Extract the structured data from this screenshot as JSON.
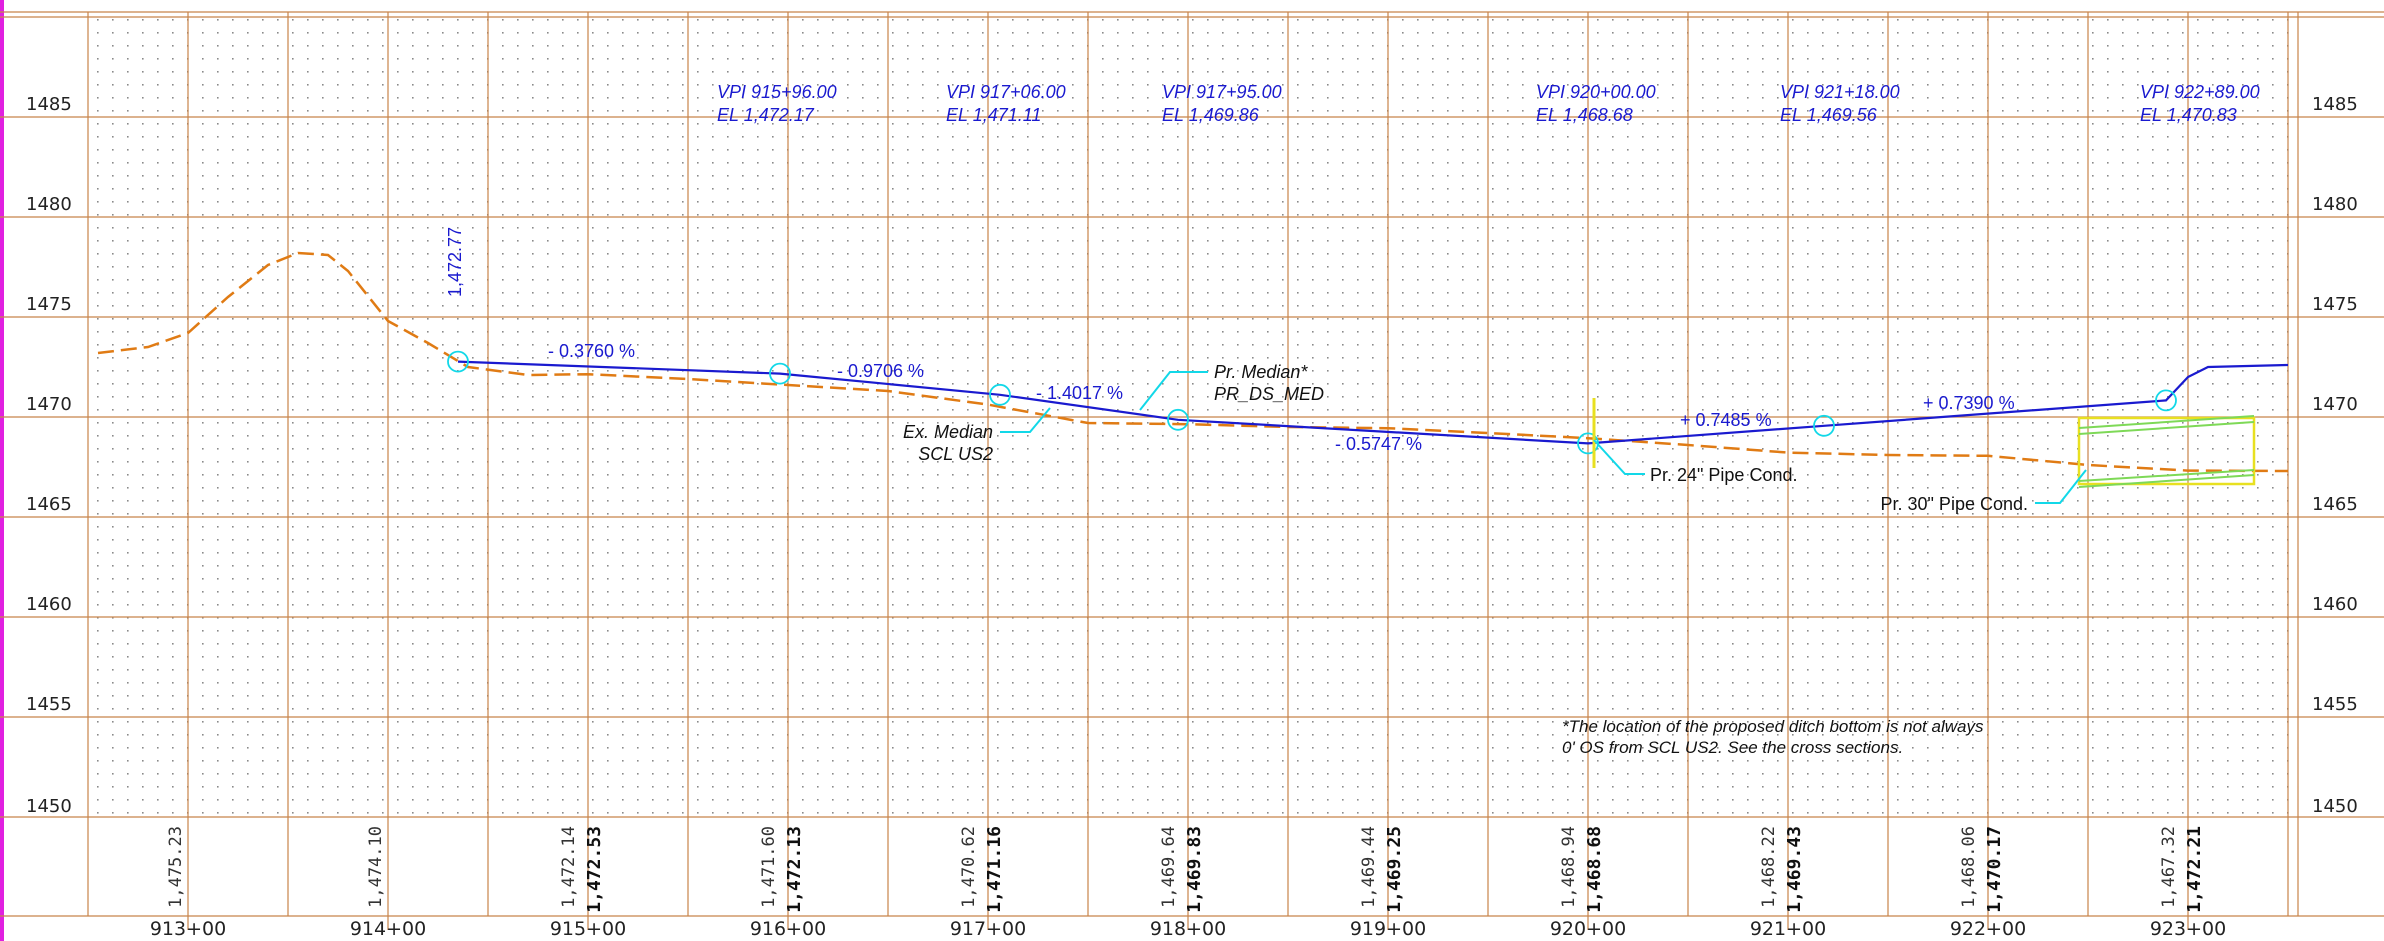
{
  "colors": {
    "frame_border": "#e020e0",
    "grid_major": "#c8844a",
    "grid_dot": "#8a8a8a",
    "existing_ground": "#e07b14",
    "proposed_profile": "#1a1acf",
    "annotation_leader": "#12d8e8",
    "pipe_box": "#e8e020",
    "pipe_inner": "#7ed957"
  },
  "elevation_labels": [
    "1485",
    "1480",
    "1475",
    "1470",
    "1465",
    "1460",
    "1455",
    "1450"
  ],
  "station_labels": [
    "913+00",
    "914+00",
    "915+00",
    "916+00",
    "917+00",
    "918+00",
    "919+00",
    "920+00",
    "921+00",
    "922+00",
    "923+00"
  ],
  "existing_elevations": [
    "1,475.23",
    "1,474.10",
    "1,472.14",
    "1,471.60",
    "1,470.62",
    "1,469.64",
    "1,469.44",
    "1,468.94",
    "1,468.22",
    "1,468.06",
    "1,467.32"
  ],
  "proposed_elevations": [
    "1,472.53",
    "1,472.13",
    "1,471.16",
    "1,469.83",
    "1,469.25",
    "1,468.68",
    "1,469.43",
    "1,470.17",
    "1,472.21"
  ],
  "vpi_labels": [
    {
      "station": "VPI 915+96.00",
      "elevation": "EL 1,472.17"
    },
    {
      "station": "VPI 917+06.00",
      "elevation": "EL 1,471.11"
    },
    {
      "station": "VPI 917+95.00",
      "elevation": "EL 1,469.86"
    },
    {
      "station": "VPI 920+00.00",
      "elevation": "EL 1,468.68"
    },
    {
      "station": "VPI 921+18.00",
      "elevation": "EL 1,469.56"
    },
    {
      "station": "VPI 922+89.00",
      "elevation": "EL 1,470.83"
    }
  ],
  "grades": [
    "- 0.3760 %",
    "- 0.9706 %",
    "- 1.4017 %",
    "- 0.5747 %",
    "+ 0.7485 %",
    "+ 0.7390 %"
  ],
  "start_elevation_label": "1,472.77",
  "callouts": {
    "proposed_median_line1": "Pr. Median*",
    "proposed_median_line2": "PR_DS_MED",
    "existing_median_line1": "Ex. Median",
    "existing_median_line2": "SCL US2",
    "pipe_24": "Pr. 24\" Pipe Cond.",
    "pipe_30": "Pr. 30\" Pipe Cond."
  },
  "note": {
    "line1": "*The location of the proposed ditch bottom is not always",
    "line2": "0' OS from SCL US2.  See the cross sections."
  },
  "profile_points": {
    "existing_ground": [
      [
        912.55,
        1473.2
      ],
      [
        912.8,
        1473.5
      ],
      [
        913.0,
        1474.2
      ],
      [
        913.2,
        1476.0
      ],
      [
        913.4,
        1477.6
      ],
      [
        913.55,
        1478.2
      ],
      [
        913.7,
        1478.1
      ],
      [
        913.8,
        1477.3
      ],
      [
        914.0,
        1474.8
      ],
      [
        914.2,
        1473.7
      ],
      [
        914.4,
        1472.5
      ],
      [
        914.7,
        1472.1
      ],
      [
        915.0,
        1472.14
      ],
      [
        915.5,
        1471.9
      ],
      [
        916.0,
        1471.6
      ],
      [
        916.5,
        1471.3
      ],
      [
        917.0,
        1470.62
      ],
      [
        917.5,
        1469.7
      ],
      [
        918.0,
        1469.64
      ],
      [
        918.5,
        1469.5
      ],
      [
        919.0,
        1469.44
      ],
      [
        919.5,
        1469.2
      ],
      [
        920.0,
        1468.94
      ],
      [
        920.5,
        1468.6
      ],
      [
        921.0,
        1468.22
      ],
      [
        921.5,
        1468.1
      ],
      [
        922.0,
        1468.06
      ],
      [
        922.5,
        1467.6
      ],
      [
        923.0,
        1467.32
      ],
      [
        923.5,
        1467.3
      ]
    ],
    "proposed_profile": [
      [
        914.35,
        1472.77
      ],
      [
        915.96,
        1472.17
      ],
      [
        917.06,
        1471.11
      ],
      [
        917.95,
        1469.86
      ],
      [
        920.0,
        1468.68
      ],
      [
        921.18,
        1469.56
      ],
      [
        922.89,
        1470.83
      ],
      [
        923.0,
        1472.0
      ],
      [
        923.1,
        1472.5
      ],
      [
        923.5,
        1472.6
      ]
    ],
    "vpi_circles": [
      [
        914.35,
        1472.77
      ],
      [
        915.96,
        1472.17
      ],
      [
        917.06,
        1471.11
      ],
      [
        917.95,
        1469.86
      ],
      [
        920.0,
        1468.68
      ],
      [
        921.18,
        1469.56
      ],
      [
        922.89,
        1470.83
      ]
    ]
  }
}
